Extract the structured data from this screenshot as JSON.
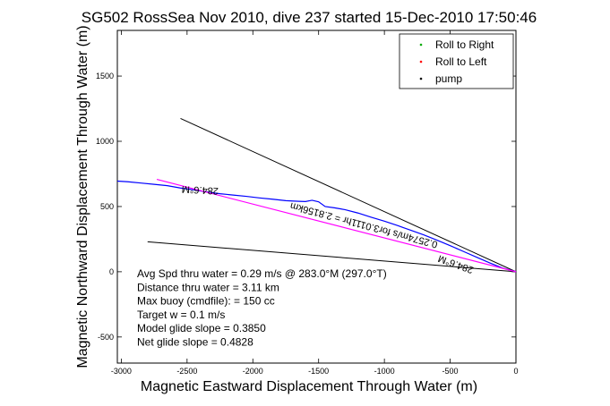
{
  "chart_data": {
    "type": "line",
    "title": "SG502 RossSea Nov 2010, dive 237 started 15-Dec-2010 17:50:46",
    "xlabel": "Magnetic Eastward Displacement Through Water (m)",
    "ylabel": "Magnetic Northward Displacement Through Water (m)",
    "xlim": [
      -3030,
      0
    ],
    "ylim": [
      -700,
      1850
    ],
    "xticks": [
      -3000,
      -2500,
      -2000,
      -1500,
      -1000,
      -500,
      0
    ],
    "yticks": [
      -500,
      0,
      500,
      1000,
      1500
    ],
    "grid": false,
    "legend_position": "top-right",
    "legend": [
      {
        "label": "Roll to Right",
        "color": "#00aa00",
        "marker": "dot"
      },
      {
        "label": "Roll to Left",
        "color": "#ff0000",
        "marker": "dot"
      },
      {
        "label": "pump",
        "color": "#000000",
        "marker": "dot"
      }
    ],
    "series": [
      {
        "color": "#0000ff",
        "x": [
          -3030,
          -2950,
          -2850,
          -2750,
          -2650,
          -2550,
          -2450,
          -2350,
          -2250,
          -2150,
          -2050,
          -1950,
          -1850,
          -1750,
          -1650,
          -1600,
          -1550,
          -1500,
          -1450,
          -1380,
          -1300,
          -1200,
          -1100,
          -1000,
          -900,
          -800,
          -700,
          -600,
          -500,
          -400,
          -300,
          -200,
          -100,
          0
        ],
        "y": [
          695,
          690,
          680,
          670,
          660,
          642,
          628,
          612,
          598,
          588,
          578,
          566,
          556,
          545,
          540,
          538,
          548,
          536,
          500,
          490,
          476,
          450,
          418,
          388,
          354,
          318,
          282,
          242,
          200,
          156,
          112,
          68,
          28,
          0
        ]
      },
      {
        "color": "#ff00ff",
        "x": [
          -2730,
          0
        ],
        "y": [
          708,
          0
        ]
      }
    ],
    "reference_lines": [
      {
        "color": "#000000",
        "x": [
          -2550,
          0
        ],
        "y": [
          1175,
          0
        ]
      },
      {
        "color": "#000000",
        "x": [
          -2800,
          0
        ],
        "y": [
          230,
          0
        ]
      }
    ],
    "annotations": [
      {
        "text": "284.6°M",
        "x": -2400,
        "y": 650,
        "rotate": 183
      },
      {
        "text": "0.2574m/s for3.0111hr = 2.8156km",
        "x": -1150,
        "y": 380,
        "rotate": 195
      },
      {
        "text": "284.6°M",
        "x": -450,
        "y": 80,
        "rotate": 200
      }
    ],
    "stats": [
      "Avg Spd thru water = 0.29 m/s @ 283.0°M (297.0°T)",
      "Distance thru water = 3.11 km",
      "Max buoy (cmdfile): = 150 cc",
      "Target w = 0.1 m/s",
      "Model glide slope = 0.3850",
      "Net glide slope = 0.4828"
    ]
  }
}
